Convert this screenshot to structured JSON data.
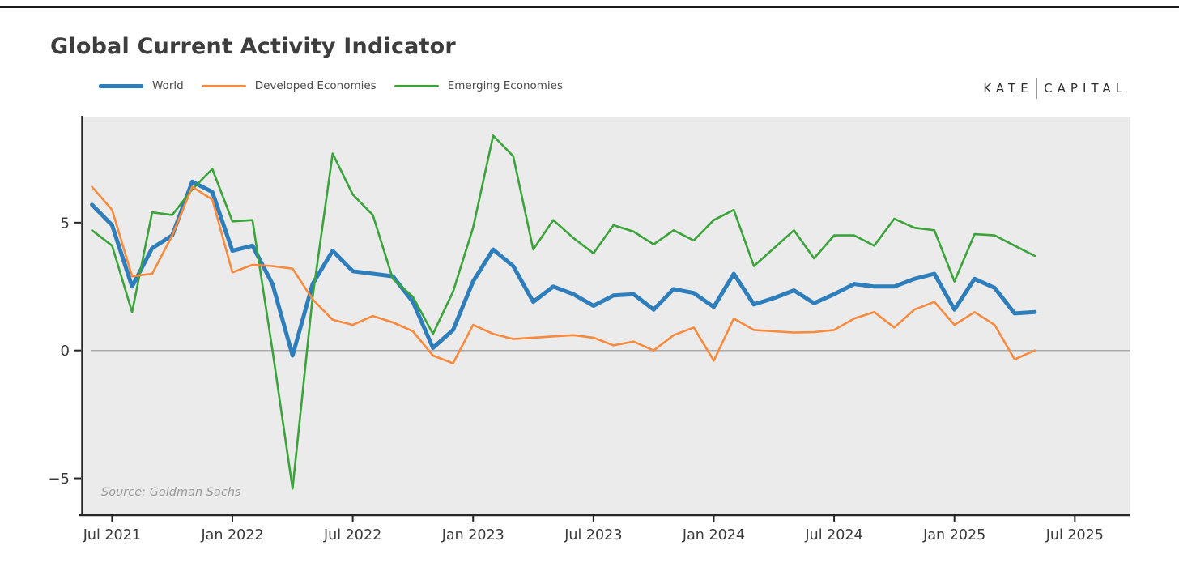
{
  "page": {
    "title": "Global Current Activity Indicator"
  },
  "branding": {
    "logo_left": "KATE",
    "logo_right": "CAPITAL"
  },
  "legend": [
    {
      "label": "World"
    },
    {
      "label": "Developed Economies"
    },
    {
      "label": "Emerging Economies"
    }
  ],
  "source_note": "Source: Goldman Sachs",
  "chart_data": {
    "type": "line",
    "title": "Global Current Activity Indicator",
    "xlabel": "",
    "ylabel": "",
    "x": [
      "Jun 2021",
      "Jul 2021",
      "Aug 2021",
      "Sep 2021",
      "Oct 2021",
      "Nov 2021",
      "Dec 2021",
      "Jan 2022",
      "Feb 2022",
      "Mar 2022",
      "Apr 2022",
      "May 2022",
      "Jun 2022",
      "Jul 2022",
      "Aug 2022",
      "Sep 2022",
      "Oct 2022",
      "Nov 2022",
      "Dec 2022",
      "Jan 2023",
      "Feb 2023",
      "Mar 2023",
      "Apr 2023",
      "May 2023",
      "Jun 2023",
      "Jul 2023",
      "Aug 2023",
      "Sep 2023",
      "Oct 2023",
      "Nov 2023",
      "Dec 2023",
      "Jan 2024",
      "Feb 2024",
      "Mar 2024",
      "Apr 2024",
      "May 2024",
      "Jun 2024",
      "Jul 2024",
      "Aug 2024",
      "Sep 2024",
      "Oct 2024",
      "Nov 2024",
      "Dec 2024",
      "Jan 2025",
      "Feb 2025",
      "Mar 2025",
      "Apr 2025",
      "May 2025"
    ],
    "series": [
      {
        "name": "World",
        "color": "#2e7ebc",
        "stroke_width": 5,
        "values": [
          5.7,
          4.9,
          2.5,
          4.0,
          4.5,
          6.6,
          6.2,
          3.9,
          4.1,
          2.6,
          -0.2,
          2.6,
          3.9,
          3.1,
          3.0,
          2.9,
          1.9,
          0.1,
          0.8,
          2.7,
          3.95,
          3.3,
          1.9,
          2.5,
          2.2,
          1.75,
          2.15,
          2.2,
          1.6,
          2.4,
          2.25,
          1.7,
          3.0,
          1.8,
          2.05,
          2.35,
          1.85,
          2.2,
          2.6,
          2.5,
          2.5,
          2.8,
          3.0,
          1.6,
          2.8,
          2.45,
          1.45,
          1.5
        ]
      },
      {
        "name": "Developed Economies",
        "color": "#f98a3d",
        "stroke_width": 2.6,
        "values": [
          6.4,
          5.5,
          2.9,
          3.0,
          4.5,
          6.4,
          5.9,
          3.05,
          3.35,
          3.3,
          3.2,
          2.0,
          1.2,
          1.0,
          1.35,
          1.1,
          0.75,
          -0.2,
          -0.5,
          1.0,
          0.65,
          0.45,
          0.5,
          0.55,
          0.6,
          0.5,
          0.2,
          0.35,
          0.0,
          0.6,
          0.9,
          -0.4,
          1.25,
          0.8,
          0.75,
          0.7,
          0.72,
          0.8,
          1.25,
          1.5,
          0.9,
          1.6,
          1.9,
          1.0,
          1.5,
          1.0,
          -0.35,
          0.0
        ]
      },
      {
        "name": "Emerging Economies",
        "color": "#3aa33a",
        "stroke_width": 2.6,
        "values": [
          4.7,
          4.1,
          1.5,
          5.4,
          5.3,
          6.3,
          7.1,
          5.05,
          5.1,
          0.0,
          -5.4,
          2.1,
          7.7,
          6.1,
          5.3,
          2.8,
          2.1,
          0.65,
          2.3,
          4.8,
          8.4,
          7.6,
          3.95,
          5.1,
          4.4,
          3.8,
          4.9,
          4.65,
          4.15,
          4.7,
          4.3,
          5.1,
          5.5,
          3.3,
          4.0,
          4.7,
          3.6,
          4.5,
          4.5,
          4.1,
          5.15,
          4.8,
          4.7,
          2.7,
          4.55,
          4.5,
          4.1,
          3.7
        ]
      }
    ],
    "y_axis": {
      "ticks": [
        {
          "v": 5,
          "label": "5"
        },
        {
          "v": 0,
          "label": "0"
        },
        {
          "v": -5,
          "label": "−5"
        }
      ],
      "range_shown": [
        -6.5,
        9.1
      ],
      "zero_line": true
    },
    "x_axis": {
      "ticks": [
        {
          "i": 1,
          "label": "Jul 2021"
        },
        {
          "i": 7,
          "label": "Jan 2022"
        },
        {
          "i": 13,
          "label": "Jul 2022"
        },
        {
          "i": 19,
          "label": "Jan 2023"
        },
        {
          "i": 25,
          "label": "Jul 2023"
        },
        {
          "i": 31,
          "label": "Jan 2024"
        },
        {
          "i": 37,
          "label": "Jul 2024"
        },
        {
          "i": 43,
          "label": "Jan 2025"
        },
        {
          "i": 49,
          "label": "Jul 2025"
        }
      ]
    },
    "legend_position": "top-left",
    "grid": "zero-line-only",
    "plot_background": "#ebebeb"
  }
}
